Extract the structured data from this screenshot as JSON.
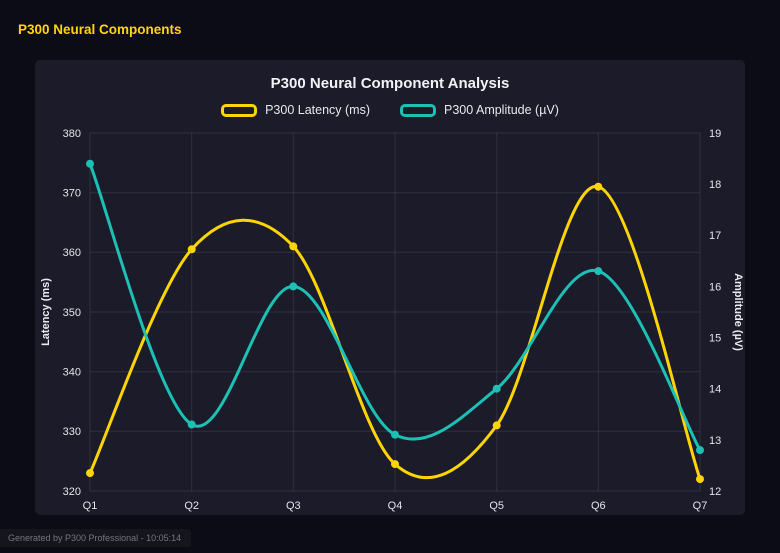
{
  "page": {
    "header": "P300 Neural Components",
    "accent_color": "#ffd700",
    "footer": "Generated by P300 Professional - 10:05:14"
  },
  "chart_data": {
    "type": "line",
    "title": "P300 Neural Component Analysis",
    "categories": [
      "Q1",
      "Q2",
      "Q3",
      "Q4",
      "Q5",
      "Q6",
      "Q7"
    ],
    "series": [
      {
        "name": "P300 Latency (ms)",
        "color": "#ffd400",
        "axis": "left",
        "values": [
          323,
          360.5,
          361,
          324.5,
          331,
          371,
          322
        ]
      },
      {
        "name": "P300 Amplitude (µV)",
        "color": "#1dc0b4",
        "axis": "right",
        "values": [
          18.4,
          13.3,
          16.0,
          13.1,
          14.0,
          16.3,
          12.8
        ]
      }
    ],
    "left_axis": {
      "label": "Latency (ms)",
      "min": 320,
      "max": 380,
      "step": 10,
      "ticks": [
        320,
        330,
        340,
        350,
        360,
        370,
        380
      ]
    },
    "right_axis": {
      "label": "Amplitude (µV)",
      "min": 12,
      "max": 19,
      "step": 1,
      "ticks": [
        12,
        13,
        14,
        15,
        16,
        17,
        18,
        19
      ]
    },
    "grid": true,
    "legend_position": "top",
    "smooth": true
  }
}
